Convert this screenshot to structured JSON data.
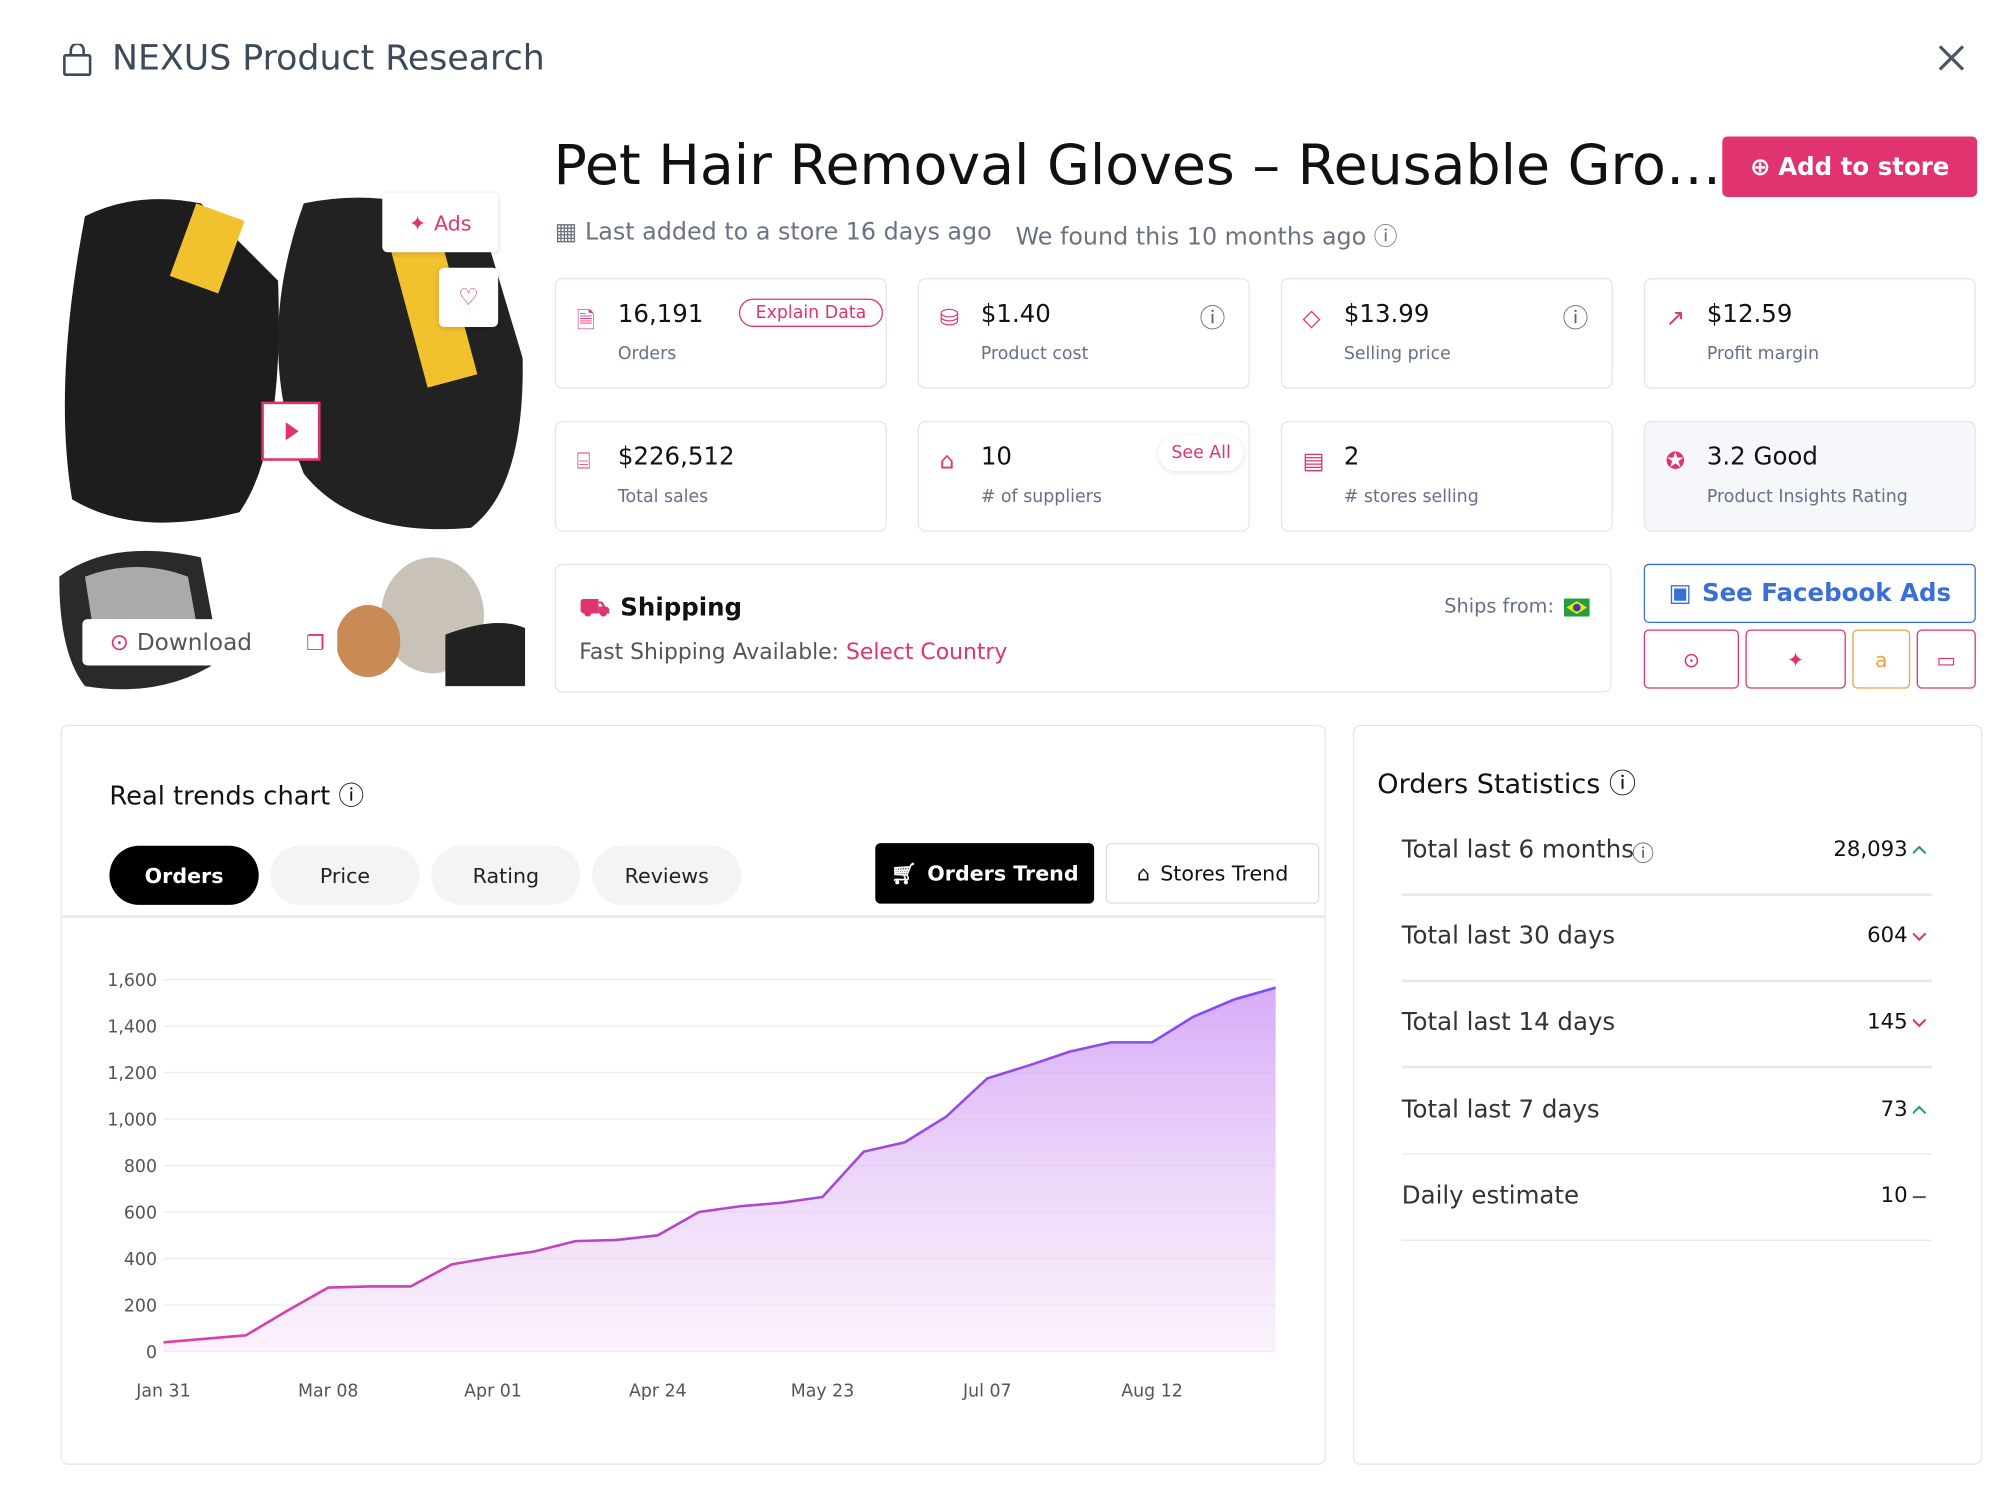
{
  "header": {
    "title": "NEXUS Product Research"
  },
  "product": {
    "title": "Pet Hair Removal Gloves – Reusable Gro…",
    "add_button": "Add to store",
    "last_added": "Last added to a store 16 days ago",
    "found": "We found this 10 months ago",
    "ads_label": "Ads",
    "download": "Download"
  },
  "stats": [
    {
      "value": "16,191",
      "label": "Orders",
      "badge": "Explain Data"
    },
    {
      "value": "$1.40",
      "label": "Product cost"
    },
    {
      "value": "$13.99",
      "label": "Selling price"
    },
    {
      "value": "$12.59",
      "label": "Profit margin"
    },
    {
      "value": "$226,512",
      "label": "Total sales"
    },
    {
      "value": "10",
      "label": "# of suppliers",
      "badge": "See All"
    },
    {
      "value": "2",
      "label": "# stores selling"
    },
    {
      "value": "3.2 Good",
      "label": "Product Insights Rating"
    }
  ],
  "shipping": {
    "title": "Shipping",
    "ships_from": "Ships from:",
    "fast": "Fast Shipping Available:",
    "select": "Select Country"
  },
  "facebook_button": "See Facebook Ads",
  "trend_tabs": [
    "Orders",
    "Price",
    "Rating",
    "Reviews"
  ],
  "trend_modes": [
    "Orders Trend",
    "Stores Trend"
  ],
  "chart_data": {
    "type": "area",
    "title": "Real trends chart",
    "categories": [
      "Jan 31",
      null,
      null,
      null,
      "Mar 08",
      null,
      null,
      null,
      "Apr 01",
      null,
      null,
      null,
      "Apr 24",
      null,
      null,
      null,
      "May 23",
      null,
      null,
      null,
      "Jul 07",
      null,
      null,
      null,
      "Aug 12",
      null,
      null,
      null
    ],
    "series": [
      {
        "name": "Orders",
        "color": "#8b5cf6",
        "values": [
          40,
          55,
          70,
          175,
          275,
          280,
          280,
          375,
          405,
          430,
          475,
          480,
          500,
          600,
          625,
          640,
          665,
          860,
          900,
          1010,
          1175,
          1230,
          1290,
          1330,
          1330,
          1440,
          1515,
          1565
        ]
      }
    ],
    "ylim": [
      0,
      1600
    ],
    "yticks": [
      0,
      200,
      400,
      600,
      800,
      {
        "value": 1000,
        "label": "1,000"
      },
      {
        "value": 1200,
        "label": "1,200"
      },
      {
        "value": 1400,
        "label": "1,400"
      },
      {
        "value": 1600,
        "label": "1,600"
      }
    ],
    "grid": true
  },
  "orders_statistics": {
    "title": "Orders Statistics",
    "rows": [
      {
        "label": "Total last 6 months",
        "value": "28,093",
        "trend": "up"
      },
      {
        "label": "Total last 30 days",
        "value": "604",
        "trend": "down"
      },
      {
        "label": "Total last 14 days",
        "value": "145",
        "trend": "down"
      },
      {
        "label": "Total last 7 days",
        "value": "73",
        "trend": "up"
      },
      {
        "label": "Daily estimate",
        "value": "10",
        "trend": "flat"
      }
    ]
  }
}
